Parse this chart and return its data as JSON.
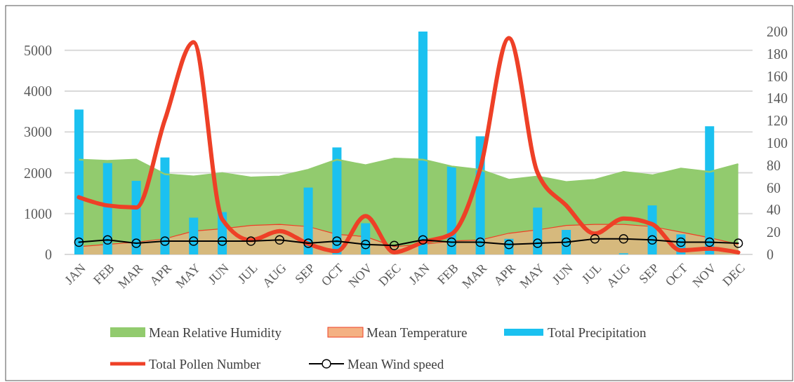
{
  "chart_data": {
    "type": "bar",
    "categories": [
      "JAN",
      "FEB",
      "MAR",
      "APR",
      "MAY",
      "JUN",
      "JUL",
      "AUG",
      "SEP",
      "OCT",
      "NOV",
      "DEC",
      "JAN",
      "FEB",
      "MAR",
      "APR",
      "MAY",
      "JUN",
      "JUL",
      "AUG",
      "SEP",
      "OCT",
      "NOV",
      "DEC"
    ],
    "series": [
      {
        "name": "Mean Relative Humidity",
        "type": "area",
        "axis": "y2",
        "color": "#92cb6e",
        "values": [
          85,
          84,
          85,
          72,
          70,
          73,
          69,
          70,
          76,
          85,
          80,
          86,
          85,
          79,
          76,
          67,
          70,
          65,
          67,
          74,
          71,
          77,
          74,
          81
        ]
      },
      {
        "name": "Mean Temperature",
        "type": "area",
        "axis": "y2",
        "color": "#f4b183",
        "values": [
          7,
          9,
          11,
          14,
          21,
          23,
          26,
          27,
          25,
          18,
          16,
          7,
          9,
          12,
          13,
          19,
          22,
          26,
          27,
          27,
          25,
          20,
          15,
          9
        ]
      },
      {
        "name": "Total Precipitation",
        "axis": "y2",
        "color": "#1bc1f0",
        "values": [
          130,
          82,
          66,
          87,
          33,
          38,
          0,
          0,
          60,
          96,
          28,
          0,
          200,
          79,
          106,
          14,
          42,
          22,
          0,
          1,
          44,
          18,
          115,
          0
        ]
      },
      {
        "name": "Total Pollen Number",
        "type": "line",
        "axis": "y",
        "color": "#ee4027",
        "values": [
          1400,
          1200,
          1150,
          3300,
          5200,
          860,
          350,
          570,
          260,
          80,
          940,
          50,
          300,
          500,
          2100,
          5300,
          2000,
          1200,
          510,
          880,
          740,
          100,
          140,
          50
        ]
      },
      {
        "name": "Mean Wind speed",
        "type": "line",
        "axis": "y2",
        "color": "#000000",
        "marker": "circle",
        "values": [
          11,
          13,
          10,
          12,
          12,
          12,
          12,
          13,
          10,
          12,
          9,
          8,
          13,
          11,
          11,
          9,
          10,
          11,
          14,
          14,
          13,
          11,
          11,
          10
        ]
      }
    ],
    "ylim": [
      0,
      5460
    ],
    "yticks": [
      0,
      1000,
      2000,
      3000,
      4000,
      5000
    ],
    "y2lim": [
      0,
      200
    ],
    "y2ticks": [
      0,
      20,
      40,
      60,
      80,
      100,
      120,
      140,
      160,
      180,
      200
    ],
    "grid": "y",
    "legend": "bottom"
  }
}
